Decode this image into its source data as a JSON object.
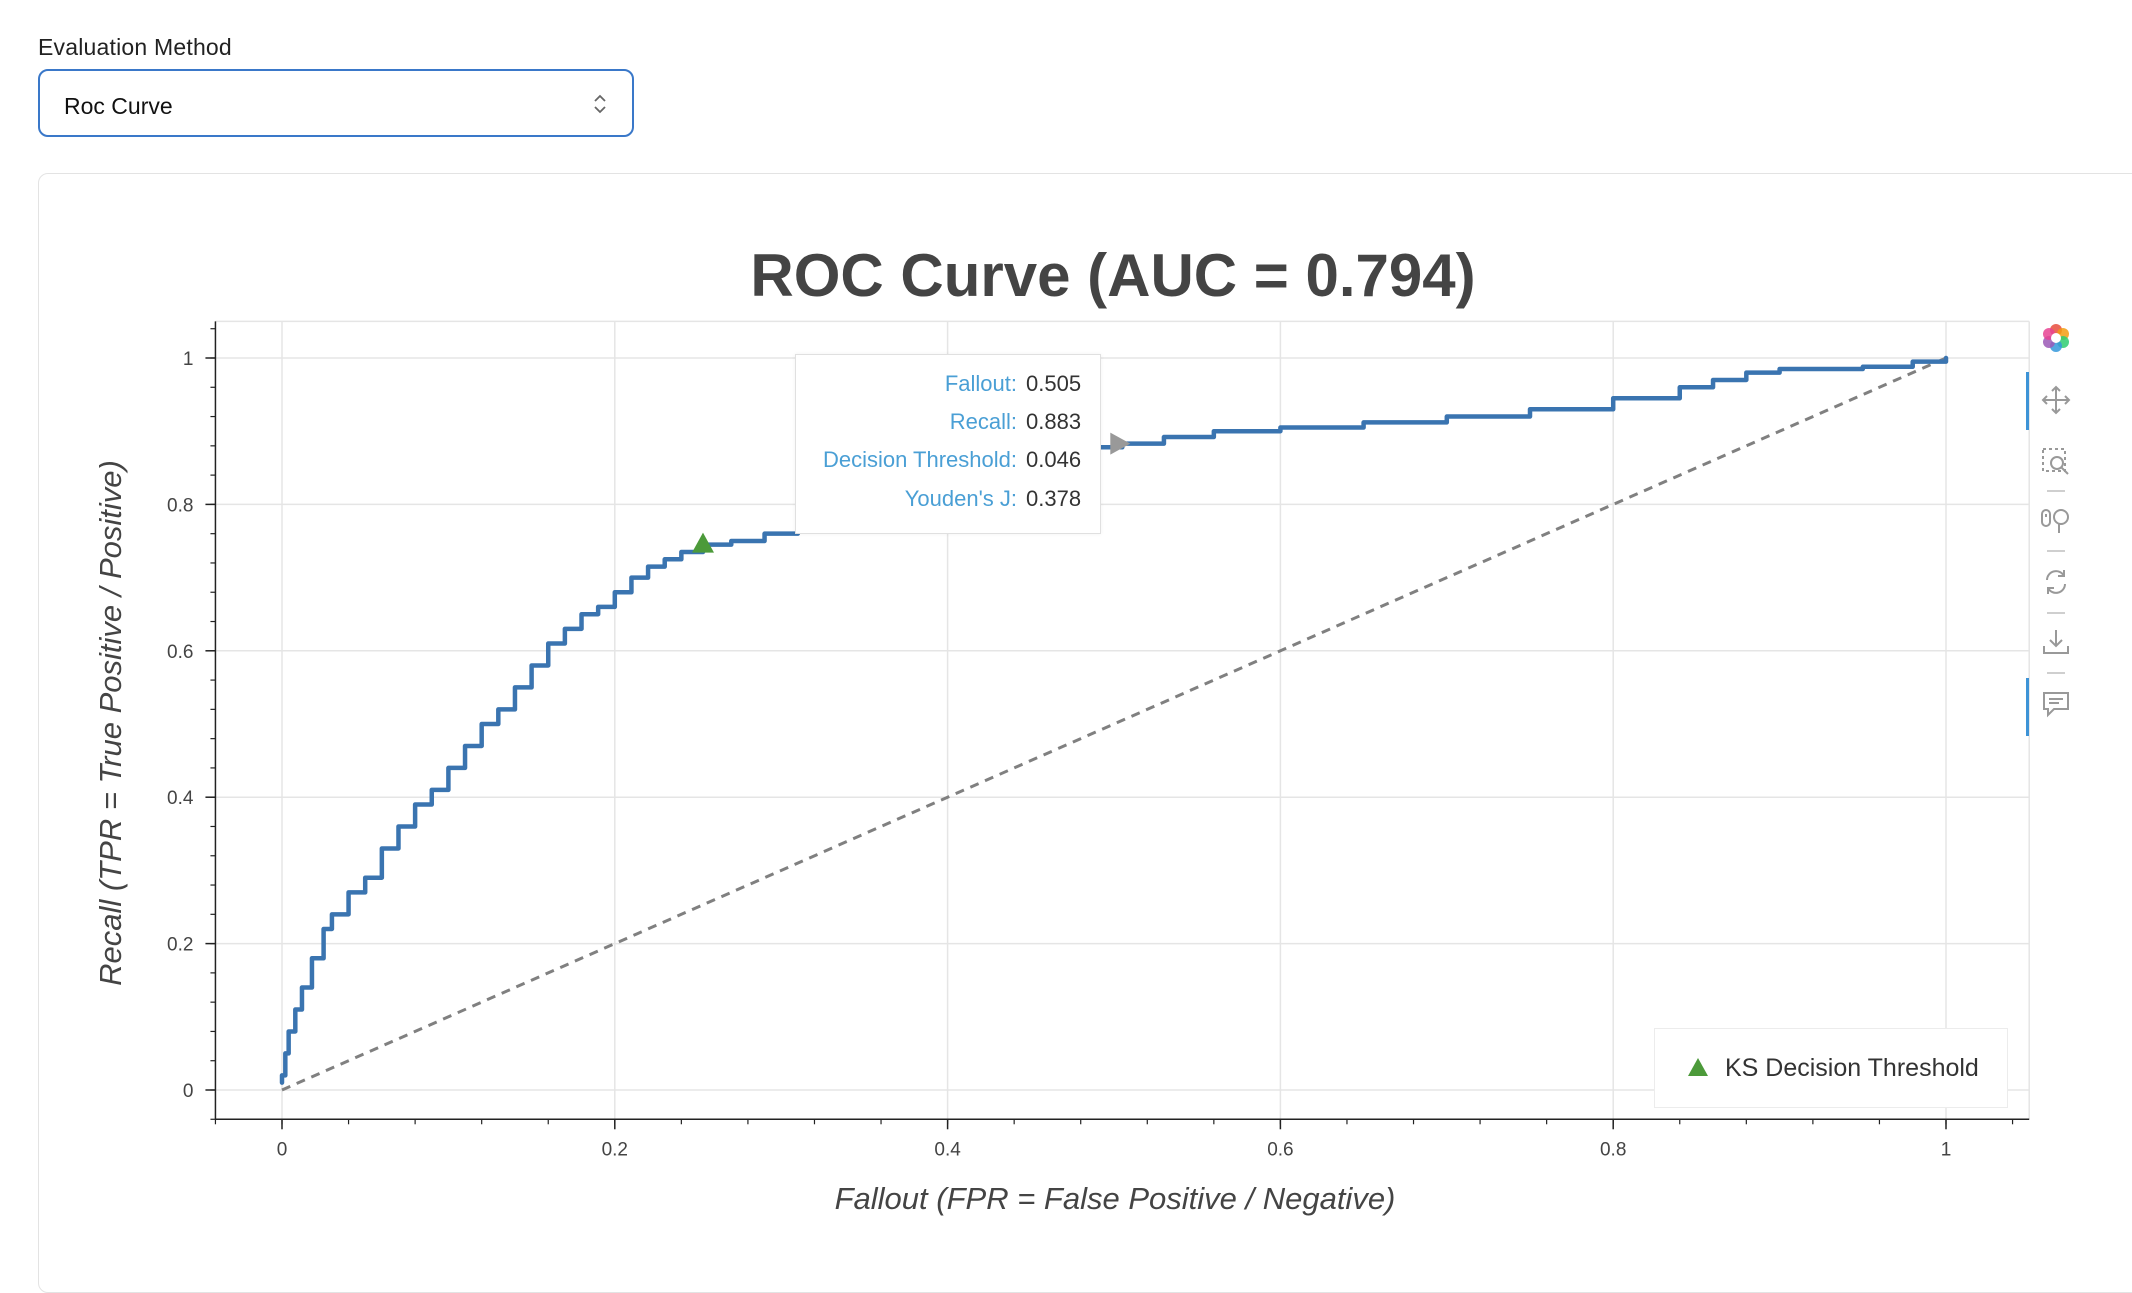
{
  "selector": {
    "label": "Evaluation Method",
    "value": "Roc Curve"
  },
  "tooltip": {
    "rows": [
      {
        "key": "Fallout:",
        "value": "0.505"
      },
      {
        "key": "Recall:",
        "value": "0.883"
      },
      {
        "key": "Decision Threshold:",
        "value": "0.046"
      },
      {
        "key": "Youden's J:",
        "value": "0.378"
      }
    ]
  },
  "legend": {
    "label": "KS Decision Threshold"
  },
  "toolbar": {
    "tools": [
      "bokeh-logo-icon",
      "pan-icon",
      "box-zoom-icon",
      "wheel-zoom-icon",
      "reset-icon",
      "save-icon",
      "hover-icon"
    ]
  },
  "colors": {
    "curve": "#3a74b0",
    "diagonal": "#808080",
    "marker": "#4c9a3a",
    "tooltip_key": "#4a9fd5",
    "select_border": "#3a78c9"
  },
  "chart_data": {
    "type": "line",
    "title": "ROC Curve (AUC = 0.794)",
    "xlabel": "Fallout (FPR = False Positive / Negative)",
    "ylabel": "Recall (TPR = True Positive / Positive)",
    "xlim": [
      -0.04,
      1.05
    ],
    "ylim": [
      -0.04,
      1.05
    ],
    "x_ticks": [
      0,
      0.2,
      0.4,
      0.6,
      0.8,
      1
    ],
    "x_tick_labels": [
      "0",
      "0.2",
      "0.4",
      "0.6",
      "0.8",
      "1"
    ],
    "y_ticks": [
      0,
      0.2,
      0.4,
      0.6,
      0.8,
      1
    ],
    "y_tick_labels": [
      "0",
      "0.2",
      "0.4",
      "0.6",
      "0.8",
      "1"
    ],
    "grid": true,
    "series": [
      {
        "x": [
          0,
          0,
          0.002,
          0.004,
          0.008,
          0.012,
          0.018,
          0.025,
          0.03,
          0.04,
          0.05,
          0.06,
          0.07,
          0.08,
          0.09,
          0.1,
          0.11,
          0.12,
          0.13,
          0.14,
          0.15,
          0.16,
          0.17,
          0.18,
          0.19,
          0.2,
          0.21,
          0.22,
          0.23,
          0.24,
          0.253,
          0.27,
          0.29,
          0.31,
          0.33,
          0.35,
          0.37,
          0.39,
          0.41,
          0.43,
          0.45,
          0.47,
          0.49,
          0.505,
          0.53,
          0.56,
          0.6,
          0.65,
          0.7,
          0.75,
          0.8,
          0.84,
          0.86,
          0.88,
          0.9,
          0.95,
          0.98,
          1.0
        ],
        "y": [
          0.01,
          0.02,
          0.05,
          0.08,
          0.11,
          0.14,
          0.18,
          0.22,
          0.24,
          0.27,
          0.29,
          0.33,
          0.36,
          0.39,
          0.41,
          0.44,
          0.47,
          0.5,
          0.52,
          0.55,
          0.58,
          0.61,
          0.63,
          0.65,
          0.66,
          0.68,
          0.7,
          0.715,
          0.725,
          0.735,
          0.745,
          0.75,
          0.76,
          0.77,
          0.78,
          0.795,
          0.81,
          0.825,
          0.84,
          0.855,
          0.865,
          0.872,
          0.878,
          0.883,
          0.892,
          0.9,
          0.905,
          0.912,
          0.92,
          0.93,
          0.945,
          0.96,
          0.97,
          0.98,
          0.985,
          0.988,
          0.995,
          1.0
        ]
      },
      {
        "x": [
          0,
          1
        ],
        "y": [
          0,
          1
        ]
      }
    ],
    "markers": [
      {
        "name": "KS Decision Threshold",
        "x": 0.253,
        "y": 0.745
      }
    ],
    "hover_point": {
      "x": 0.505,
      "y": 0.883
    }
  }
}
